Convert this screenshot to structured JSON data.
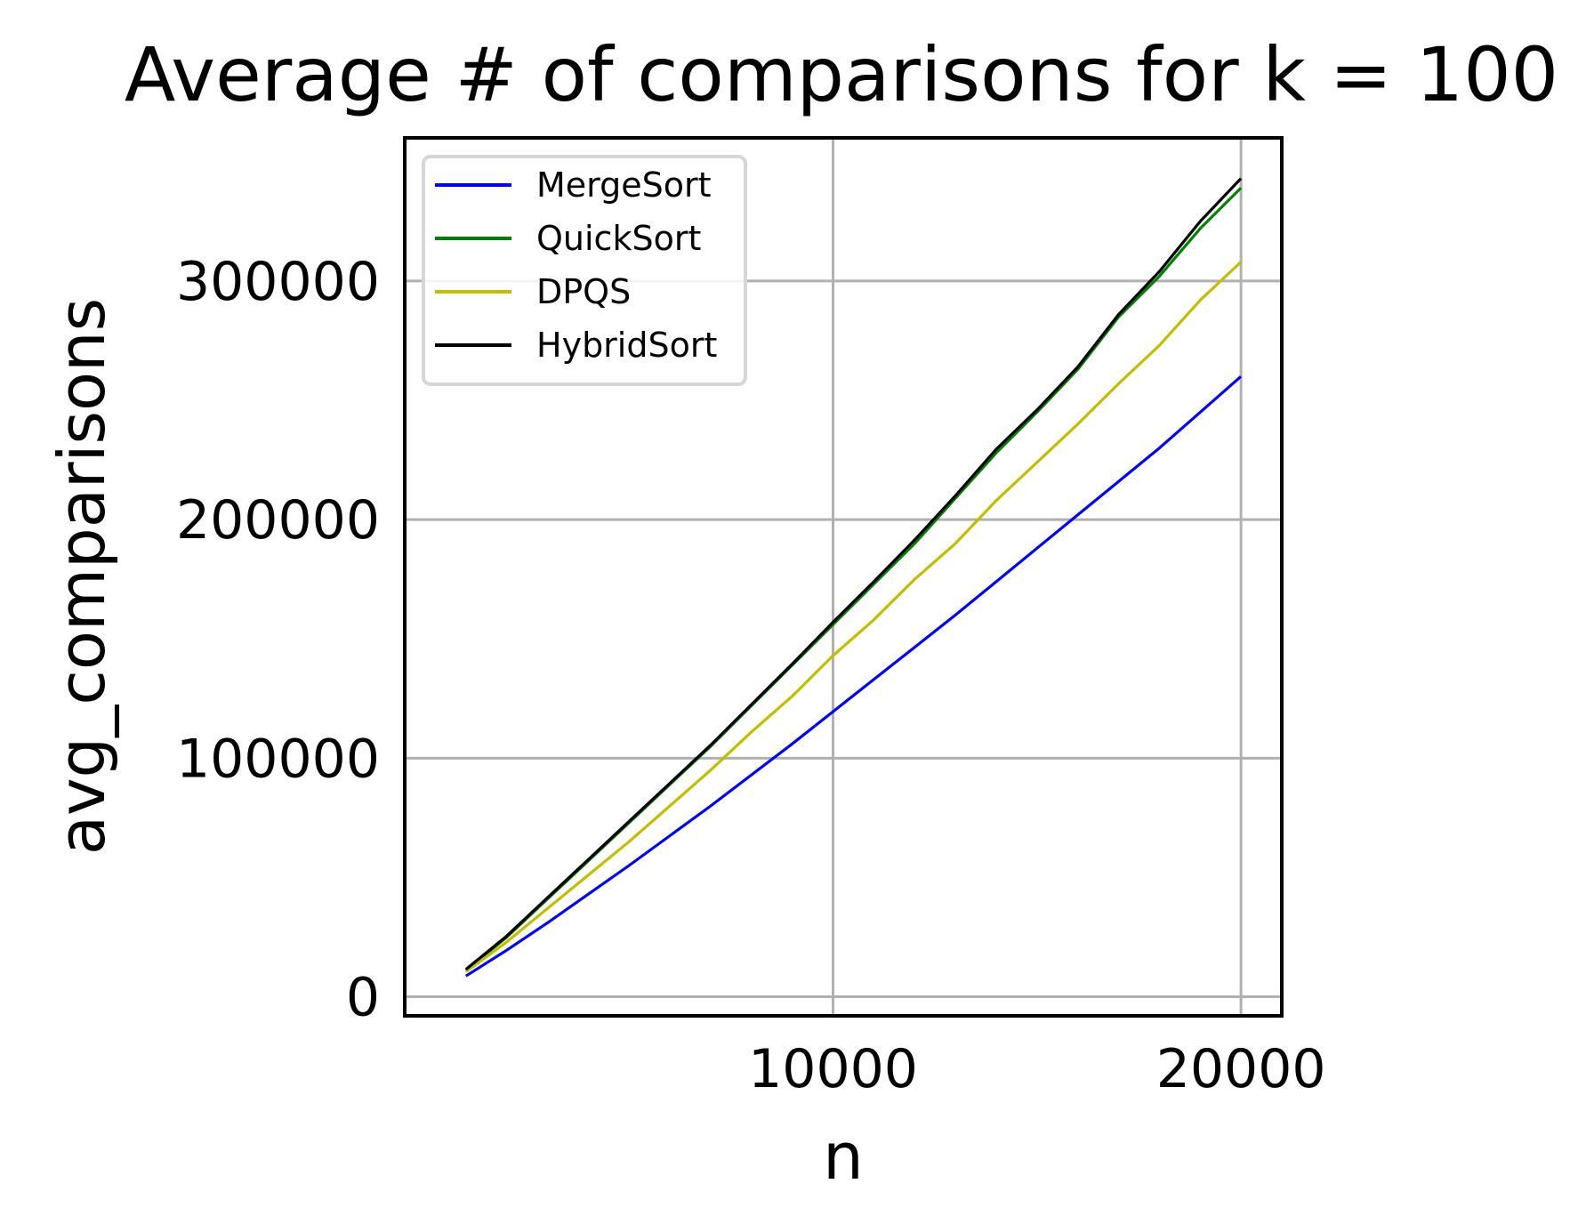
{
  "chart_data": {
    "type": "line",
    "title": "Average # of comparisons for k = 100",
    "xlabel": "n",
    "ylabel": "avg_comparisons",
    "xlim": [
      -500,
      21000
    ],
    "ylim": [
      -8000,
      360000
    ],
    "x_ticks": [
      10000,
      20000
    ],
    "x_tick_labels": [
      "10000",
      "20000"
    ],
    "y_ticks": [
      0,
      100000,
      200000,
      300000
    ],
    "y_tick_labels": [
      "0",
      "100000",
      "200000",
      "300000"
    ],
    "grid": true,
    "legend_position": "top-left",
    "x": [
      1000,
      2000,
      3000,
      4000,
      5000,
      6000,
      7000,
      8000,
      9000,
      10000,
      11000,
      12000,
      13000,
      14000,
      15000,
      16000,
      17000,
      18000,
      19000,
      20000
    ],
    "series": [
      {
        "name": "MergeSort",
        "color": "#0000ff",
        "values": [
          8700,
          19500,
          31000,
          43000,
          55000,
          67500,
          80000,
          93000,
          106000,
          119500,
          133000,
          146500,
          160000,
          174000,
          188000,
          202000,
          216000,
          230000,
          245000,
          260000
        ]
      },
      {
        "name": "QuickSort",
        "color": "#008000",
        "values": [
          11000,
          25000,
          41000,
          57000,
          73000,
          89000,
          105000,
          122000,
          139000,
          156000,
          173000,
          190000,
          209000,
          228000,
          245000,
          263000,
          285000,
          302000,
          322000,
          339000
        ]
      },
      {
        "name": "DPQS",
        "color": "#bfbf00",
        "values": [
          10500,
          23000,
          37000,
          51000,
          65000,
          80000,
          95000,
          111000,
          126000,
          143000,
          158000,
          175000,
          190000,
          208000,
          224000,
          240000,
          257000,
          273000,
          292000,
          308000
        ]
      },
      {
        "name": "HybridSort",
        "color": "#000000",
        "values": [
          11500,
          25500,
          41500,
          57500,
          73500,
          89500,
          105500,
          122500,
          139500,
          157000,
          174000,
          191500,
          210000,
          229500,
          246000,
          264000,
          286000,
          304000,
          325000,
          343000
        ]
      }
    ]
  }
}
